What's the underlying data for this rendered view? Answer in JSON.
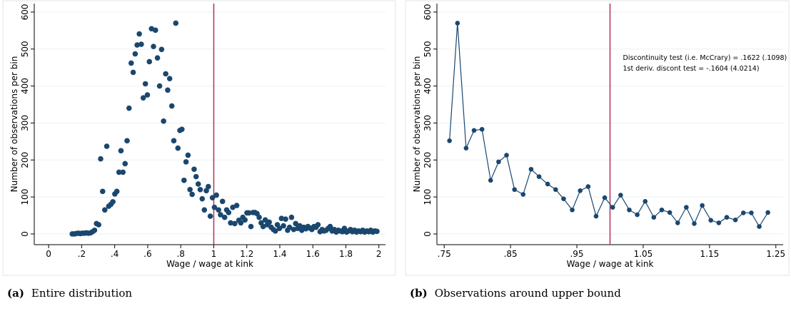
{
  "chart_data": [
    {
      "type": "scatter",
      "x_label": "Wage / wage at kink",
      "y_label": "Number of observations per bin",
      "caption": {
        "label": "(a)",
        "text": "Entire distribution"
      },
      "color": "#1a476f",
      "vline": 1,
      "vline_color": "#b03060",
      "grid": true,
      "xlim": [
        -0.087,
        2.04
      ],
      "ylim": [
        -29,
        623
      ],
      "xticks": [
        0,
        {
          "value": 0.2,
          "label": ".2"
        },
        {
          "value": 0.4,
          "label": ".4"
        },
        {
          "value": 0.6,
          "label": ".6"
        },
        {
          "value": 0.8,
          "label": ".8"
        },
        1,
        1.2,
        1.4,
        1.6,
        1.8,
        2
      ],
      "yticks": [
        0,
        100,
        200,
        300,
        400,
        500,
        600
      ],
      "x": [
        0.143,
        0.155,
        0.167,
        0.18,
        0.192,
        0.204,
        0.217,
        0.229,
        0.241,
        0.254,
        0.266,
        0.278,
        0.29,
        0.303,
        0.315,
        0.327,
        0.34,
        0.352,
        0.364,
        0.377,
        0.389,
        0.401,
        0.413,
        0.426,
        0.438,
        0.45,
        0.463,
        0.475,
        0.487,
        0.5,
        0.512,
        0.524,
        0.536,
        0.549,
        0.561,
        0.573,
        0.586,
        0.598,
        0.61,
        0.623,
        0.635,
        0.647,
        0.659,
        0.672,
        0.684,
        0.696,
        0.709,
        0.721,
        0.733,
        0.746,
        0.758,
        0.77,
        0.783,
        0.795,
        0.807,
        0.82,
        0.832,
        0.844,
        0.856,
        0.869,
        0.881,
        0.893,
        0.906,
        0.918,
        0.93,
        0.943,
        0.955,
        0.967,
        0.979,
        0.992,
        1.004,
        1.016,
        1.029,
        1.041,
        1.053,
        1.066,
        1.078,
        1.09,
        1.102,
        1.115,
        1.127,
        1.139,
        1.152,
        1.164,
        1.176,
        1.189,
        1.201,
        1.213,
        1.225,
        1.238,
        1.25,
        1.262,
        1.275,
        1.287,
        1.299,
        1.312,
        1.324,
        1.336,
        1.348,
        1.361,
        1.373,
        1.385,
        1.398,
        1.41,
        1.422,
        1.435,
        1.447,
        1.459,
        1.471,
        1.484,
        1.496,
        1.508,
        1.521,
        1.533,
        1.545,
        1.558,
        1.57,
        1.582,
        1.594,
        1.607,
        1.619,
        1.631,
        1.644,
        1.656,
        1.668,
        1.681,
        1.693,
        1.705,
        1.717,
        1.73,
        1.742,
        1.754,
        1.767,
        1.779,
        1.791,
        1.804,
        1.816,
        1.828,
        1.84,
        1.853,
        1.865,
        1.877,
        1.89,
        1.902,
        1.914,
        1.927,
        1.939,
        1.951,
        1.963,
        1.976,
        1.988
      ],
      "values": [
        0,
        0,
        1,
        2,
        1,
        2,
        2,
        3,
        2,
        3,
        6,
        10,
        28,
        25,
        203,
        115,
        65,
        237,
        75,
        80,
        87,
        108,
        115,
        167,
        225,
        167,
        190,
        252,
        340,
        462,
        437,
        487,
        511,
        541,
        513,
        368,
        406,
        376,
        466,
        555,
        507,
        551,
        476,
        400,
        499,
        305,
        433,
        389,
        420,
        346,
        252,
        570,
        232,
        280,
        283,
        145,
        195,
        213,
        120,
        107,
        175,
        155,
        135,
        120,
        95,
        65,
        117,
        128,
        48,
        98,
        72,
        105,
        65,
        52,
        88,
        45,
        65,
        58,
        30,
        72,
        28,
        77,
        37,
        30,
        45,
        38,
        57,
        57,
        20,
        58,
        58,
        55,
        45,
        30,
        20,
        38,
        25,
        32,
        18,
        12,
        8,
        25,
        15,
        42,
        22,
        40,
        10,
        18,
        45,
        12,
        28,
        15,
        22,
        10,
        18,
        14,
        20,
        16,
        12,
        20,
        18,
        25,
        6,
        12,
        8,
        10,
        15,
        20,
        8,
        12,
        5,
        10,
        8,
        6,
        15,
        5,
        8,
        12,
        6,
        10,
        5,
        8,
        6,
        10,
        5,
        8,
        6,
        10,
        5,
        8,
        7
      ]
    },
    {
      "type": "line",
      "x_label": "Wage / wage at kink",
      "y_label": "Number of observations per bin",
      "caption": {
        "label": "(b)",
        "text": "Observations around upper bound"
      },
      "annotations": [
        "Discontinuity test (i.e. McCrary) = .1622 (.1098)",
        "1st deriv. discont test = -.1604 (4.0214)"
      ],
      "color": "#1a476f",
      "vline": 1,
      "vline_color": "#b03060",
      "grid": true,
      "xlim": [
        0.739,
        1.261
      ],
      "ylim": [
        -29,
        623
      ],
      "xticks": [
        {
          "value": 0.75,
          "label": ".75"
        },
        {
          "value": 0.85,
          "label": ".85"
        },
        {
          "value": 0.95,
          "label": ".95"
        },
        1.05,
        1.15,
        1.25
      ],
      "yticks": [
        0,
        100,
        200,
        300,
        400,
        500,
        600
      ],
      "x": [
        0.758,
        0.77,
        0.783,
        0.795,
        0.807,
        0.82,
        0.832,
        0.844,
        0.856,
        0.869,
        0.881,
        0.893,
        0.906,
        0.918,
        0.93,
        0.943,
        0.955,
        0.967,
        0.979,
        0.992,
        1.004,
        1.016,
        1.029,
        1.041,
        1.053,
        1.066,
        1.078,
        1.09,
        1.102,
        1.115,
        1.127,
        1.139,
        1.152,
        1.164,
        1.176,
        1.189,
        1.201,
        1.213,
        1.225,
        1.238
      ],
      "values": [
        252,
        570,
        232,
        280,
        283,
        145,
        195,
        213,
        120,
        107,
        175,
        155,
        135,
        120,
        95,
        65,
        117,
        128,
        48,
        98,
        72,
        105,
        65,
        52,
        88,
        45,
        65,
        58,
        30,
        72,
        28,
        77,
        37,
        30,
        45,
        38,
        57,
        57,
        20,
        58
      ]
    }
  ]
}
